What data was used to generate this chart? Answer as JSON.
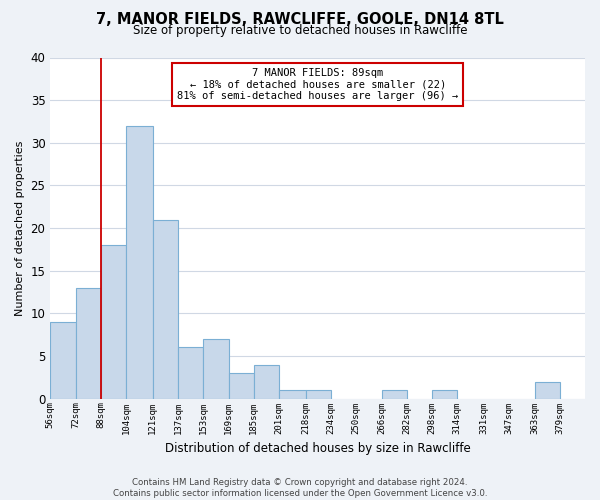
{
  "title": "7, MANOR FIELDS, RAWCLIFFE, GOOLE, DN14 8TL",
  "subtitle": "Size of property relative to detached houses in Rawcliffe",
  "xlabel": "Distribution of detached houses by size in Rawcliffe",
  "ylabel": "Number of detached properties",
  "bin_labels": [
    "56sqm",
    "72sqm",
    "88sqm",
    "104sqm",
    "121sqm",
    "137sqm",
    "153sqm",
    "169sqm",
    "185sqm",
    "201sqm",
    "218sqm",
    "234sqm",
    "250sqm",
    "266sqm",
    "282sqm",
    "298sqm",
    "314sqm",
    "331sqm",
    "347sqm",
    "363sqm",
    "379sqm"
  ],
  "bin_edges": [
    56,
    72,
    88,
    104,
    121,
    137,
    153,
    169,
    185,
    201,
    218,
    234,
    250,
    266,
    282,
    298,
    314,
    331,
    347,
    363,
    379,
    395
  ],
  "bar_values": [
    9,
    13,
    18,
    32,
    21,
    6,
    7,
    3,
    4,
    1,
    1,
    0,
    0,
    1,
    0,
    1,
    0,
    0,
    0,
    2,
    0
  ],
  "bar_color": "#c8d8ea",
  "bar_edge_color": "#7bafd4",
  "vline_x": 88,
  "vline_color": "#cc0000",
  "annotation_line1": "7 MANOR FIELDS: 89sqm",
  "annotation_line2": "← 18% of detached houses are smaller (22)",
  "annotation_line3": "81% of semi-detached houses are larger (96) →",
  "annotation_box_edge_color": "#cc0000",
  "annotation_box_face_color": "#ffffff",
  "ylim": [
    0,
    40
  ],
  "yticks": [
    0,
    5,
    10,
    15,
    20,
    25,
    30,
    35,
    40
  ],
  "footer_text": "Contains HM Land Registry data © Crown copyright and database right 2024.\nContains public sector information licensed under the Open Government Licence v3.0.",
  "bg_color": "#eef2f7",
  "plot_bg_color": "#ffffff",
  "grid_color": "#d0d8e4"
}
